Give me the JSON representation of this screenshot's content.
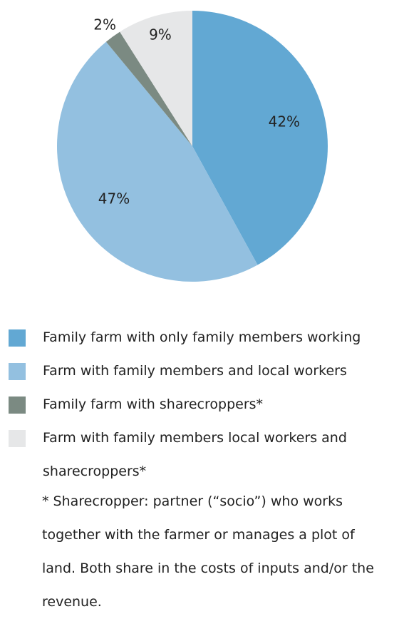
{
  "chart_data": {
    "type": "pie",
    "categories": [
      "Family farm with only family members working",
      "Farm with family members and local workers",
      "Family farm with sharecroppers*",
      "Farm with family members local workers and sharecroppers*"
    ],
    "values": [
      42,
      47,
      2,
      9
    ],
    "value_labels": [
      "42%",
      "47%",
      "2%",
      "9%"
    ],
    "colors": [
      "#62a8d3",
      "#93c0e0",
      "#7b8a82",
      "#e6e7e8"
    ],
    "footnote": " * Sharecropper: partner (“socio”) who works together with the farmer or manages a plot of land. Both share in the costs of inputs and/or the revenue."
  }
}
